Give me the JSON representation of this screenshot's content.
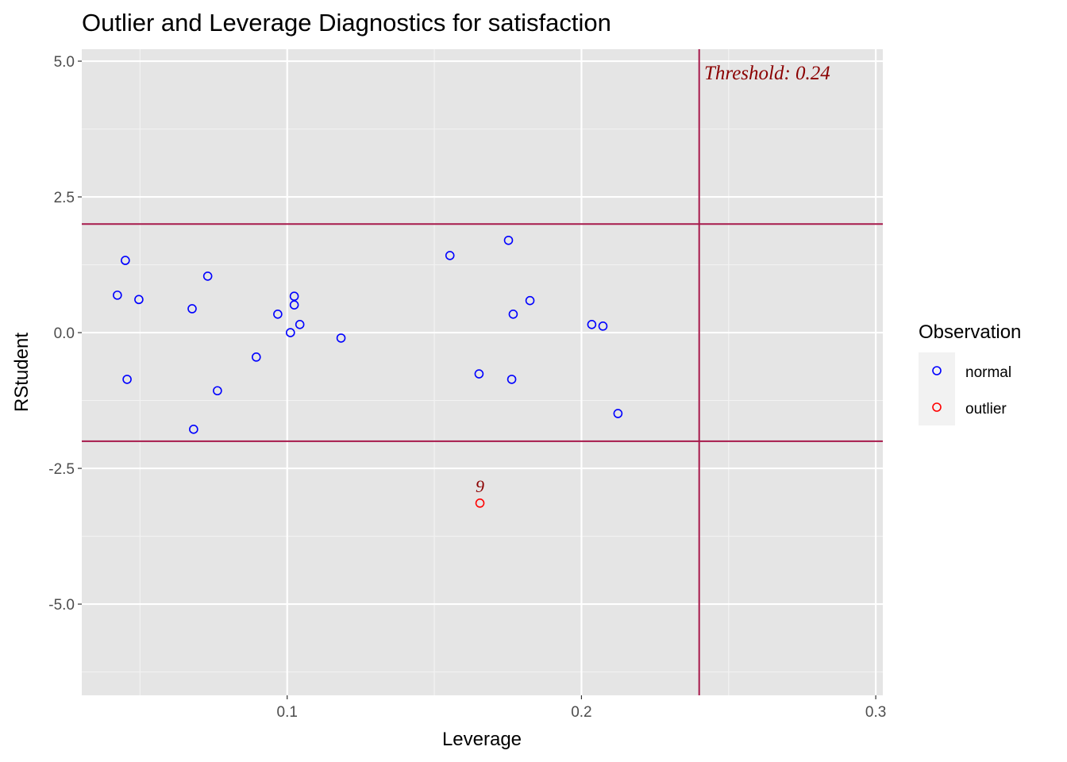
{
  "chart_data": {
    "type": "scatter",
    "title": "Outlier and Leverage Diagnostics for satisfaction",
    "xlabel": "Leverage",
    "ylabel": "RStudent",
    "xlim": [
      0.0302,
      0.3024
    ],
    "ylim": [
      -6.68,
      5.22
    ],
    "xticks": [
      0.1,
      0.2,
      0.3
    ],
    "xtick_labels": [
      "0.1",
      "0.2",
      "0.3"
    ],
    "xminor": [
      0.05,
      0.15,
      0.25
    ],
    "yticks": [
      5.0,
      2.5,
      0.0,
      -2.5,
      -5.0
    ],
    "ytick_labels": [
      "5.0",
      "2.5",
      "0.0",
      "-2.5",
      "-5.0"
    ],
    "yminor": [
      3.75,
      1.25,
      -1.25,
      -3.75,
      -6.25
    ],
    "grid": true,
    "hlines": [
      2,
      -2
    ],
    "vline": 0.24,
    "line_color": "#a7194b",
    "threshold_label": "Threshold: 0.24",
    "legend": {
      "title": "Observation",
      "placement": "right",
      "entries": [
        {
          "label": "normal",
          "color": "#0000ff"
        },
        {
          "label": "outlier",
          "color": "#ff0000"
        }
      ]
    },
    "series": [
      {
        "name": "normal",
        "color": "#0000ff",
        "points": [
          [
            0.0423,
            0.69
          ],
          [
            0.045,
            1.33
          ],
          [
            0.0496,
            0.61
          ],
          [
            0.0456,
            -0.86
          ],
          [
            0.0677,
            0.44
          ],
          [
            0.073,
            1.04
          ],
          [
            0.0682,
            -1.78
          ],
          [
            0.0763,
            -1.07
          ],
          [
            0.0895,
            -0.45
          ],
          [
            0.0968,
            0.34
          ],
          [
            0.1011,
            0.0
          ],
          [
            0.1024,
            0.67
          ],
          [
            0.1024,
            0.51
          ],
          [
            0.1043,
            0.15
          ],
          [
            0.1183,
            -0.1
          ],
          [
            0.1553,
            1.42
          ],
          [
            0.1652,
            -0.76
          ],
          [
            0.1752,
            1.7
          ],
          [
            0.1768,
            0.34
          ],
          [
            0.1763,
            -0.86
          ],
          [
            0.1825,
            0.59
          ],
          [
            0.2035,
            0.15
          ],
          [
            0.2073,
            0.12
          ],
          [
            0.2124,
            -1.49
          ]
        ]
      },
      {
        "name": "outlier",
        "color": "#ff0000",
        "points": [
          [
            0.1655,
            -3.14
          ]
        ],
        "labels": [
          "9"
        ]
      }
    ]
  }
}
